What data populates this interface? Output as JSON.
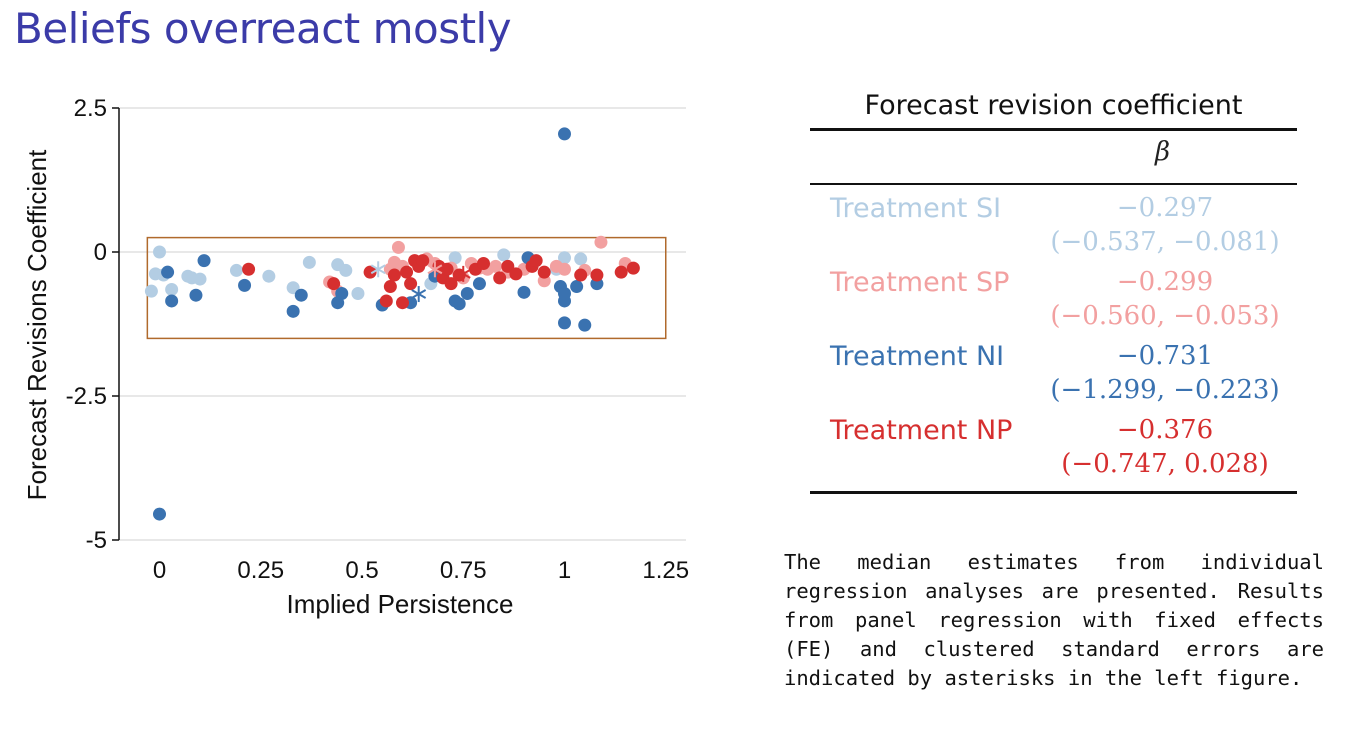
{
  "slide": {
    "title": "Beliefs overreact mostly"
  },
  "chart_data": {
    "type": "scatter",
    "title": "",
    "xlabel": "Implied Persistence",
    "ylabel": "Forecast Revisions Coefficient",
    "xlim": [
      -0.1,
      1.3
    ],
    "ylim": [
      -5,
      2.5
    ],
    "x_ticks": [
      "0",
      "0.25",
      "0.5",
      "0.75",
      "1",
      "1.25"
    ],
    "x_tick_values": [
      0,
      0.25,
      0.5,
      0.75,
      1,
      1.25
    ],
    "y_ticks": [
      "2.5",
      "0",
      "-2.5",
      "-5"
    ],
    "y_tick_values": [
      2.5,
      0,
      -2.5,
      -5
    ],
    "grid": "horizontal",
    "highlight_box": {
      "x0": -0.03,
      "x1": 1.25,
      "y0": -1.5,
      "y1": 0.25,
      "color": "#b06a2c"
    },
    "series": [
      {
        "color": "#b3cde3",
        "points": [
          [
            0,
            0
          ],
          [
            -0.01,
            -0.38
          ],
          [
            0.01,
            -0.4
          ],
          [
            -0.02,
            -0.68
          ],
          [
            0.03,
            -0.65
          ],
          [
            0.07,
            -0.42
          ],
          [
            0.08,
            -0.45
          ],
          [
            0.1,
            -0.47
          ],
          [
            0.19,
            -0.32
          ],
          [
            0.27,
            -0.42
          ],
          [
            0.33,
            -0.62
          ],
          [
            0.37,
            -0.18
          ],
          [
            0.44,
            -0.22
          ],
          [
            0.46,
            -0.32
          ],
          [
            0.49,
            -0.72
          ],
          [
            0.67,
            -0.55
          ],
          [
            0.7,
            -0.4
          ],
          [
            0.73,
            -0.1
          ],
          [
            0.85,
            -0.05
          ],
          [
            1,
            -0.1
          ],
          [
            1.04,
            -0.12
          ],
          [
            0.98,
            -0.3
          ]
        ]
      },
      {
        "color": "#f2a0a0",
        "points": [
          [
            0.42,
            -0.52
          ],
          [
            0.44,
            -0.68
          ],
          [
            0.57,
            -0.3
          ],
          [
            0.58,
            -0.18
          ],
          [
            0.59,
            0.08
          ],
          [
            0.6,
            -0.25
          ],
          [
            0.63,
            -0.15
          ],
          [
            0.66,
            -0.12
          ],
          [
            0.68,
            -0.2
          ],
          [
            0.7,
            -0.35
          ],
          [
            0.72,
            -0.28
          ],
          [
            0.75,
            -0.45
          ],
          [
            0.77,
            -0.2
          ],
          [
            0.79,
            -0.28
          ],
          [
            0.81,
            -0.3
          ],
          [
            0.83,
            -0.25
          ],
          [
            0.86,
            -0.35
          ],
          [
            0.9,
            -0.3
          ],
          [
            0.95,
            -0.5
          ],
          [
            0.98,
            -0.25
          ],
          [
            1,
            -0.3
          ],
          [
            1.05,
            -0.32
          ],
          [
            1.09,
            0.17
          ],
          [
            1.15,
            -0.2
          ]
        ]
      },
      {
        "color": "#3a72b0",
        "points": [
          [
            0,
            -4.55
          ],
          [
            0.02,
            -0.35
          ],
          [
            0.03,
            -0.85
          ],
          [
            0.09,
            -0.75
          ],
          [
            0.11,
            -0.15
          ],
          [
            0.21,
            -0.58
          ],
          [
            0.33,
            -1.03
          ],
          [
            0.35,
            -0.75
          ],
          [
            0.44,
            -0.88
          ],
          [
            0.45,
            -0.72
          ],
          [
            0.55,
            -0.92
          ],
          [
            0.62,
            -0.88
          ],
          [
            0.68,
            -0.42
          ],
          [
            0.73,
            -0.85
          ],
          [
            0.74,
            -0.9
          ],
          [
            0.76,
            -0.72
          ],
          [
            0.79,
            -0.55
          ],
          [
            0.9,
            -0.7
          ],
          [
            0.91,
            -0.1
          ],
          [
            0.99,
            -0.6
          ],
          [
            1,
            -0.72
          ],
          [
            1,
            -0.85
          ],
          [
            1,
            -1.23
          ],
          [
            1,
            2.05
          ],
          [
            1.03,
            -0.6
          ],
          [
            1.05,
            -1.27
          ],
          [
            1.08,
            -0.55
          ]
        ]
      },
      {
        "color": "#d62f2f",
        "points": [
          [
            0.22,
            -0.3
          ],
          [
            0.43,
            -0.55
          ],
          [
            0.52,
            -0.35
          ],
          [
            0.56,
            -0.85
          ],
          [
            0.57,
            -0.6
          ],
          [
            0.58,
            -0.4
          ],
          [
            0.6,
            -0.88
          ],
          [
            0.61,
            -0.35
          ],
          [
            0.62,
            -0.55
          ],
          [
            0.63,
            -0.15
          ],
          [
            0.64,
            -0.25
          ],
          [
            0.65,
            -0.15
          ],
          [
            0.69,
            -0.25
          ],
          [
            0.7,
            -0.45
          ],
          [
            0.71,
            -0.3
          ],
          [
            0.72,
            -0.55
          ],
          [
            0.74,
            -0.4
          ],
          [
            0.78,
            -0.3
          ],
          [
            0.8,
            -0.2
          ],
          [
            0.84,
            -0.45
          ],
          [
            0.86,
            -0.25
          ],
          [
            0.88,
            -0.38
          ],
          [
            0.92,
            -0.25
          ],
          [
            0.93,
            -0.15
          ],
          [
            0.95,
            -0.35
          ],
          [
            1.04,
            -0.4
          ],
          [
            1.08,
            -0.4
          ],
          [
            1.14,
            -0.35
          ],
          [
            1.17,
            -0.28
          ]
        ]
      }
    ],
    "fe_markers": [
      {
        "color": "#b3cde3",
        "x": 0.54,
        "y": -0.3
      },
      {
        "color": "#f2a0a0",
        "x": 0.68,
        "y": -0.3
      },
      {
        "color": "#3a72b0",
        "x": 0.64,
        "y": -0.73
      },
      {
        "color": "#d62f2f",
        "x": 0.75,
        "y": -0.38
      }
    ]
  },
  "table": {
    "title": "Forecast revision coefficient",
    "col_header": "β",
    "rows": [
      {
        "name": "Treatment SI",
        "estimate": "−0.297",
        "ci": "(−0.537, −0.081)",
        "color": "#b3cde3"
      },
      {
        "name": "Treatment SP",
        "estimate": "−0.299",
        "ci": "(−0.560, −0.053)",
        "color": "#f2a0a0"
      },
      {
        "name": "Treatment NI",
        "estimate": "−0.731",
        "ci": "(−1.299, −0.223)",
        "color": "#3a72b0"
      },
      {
        "name": "Treatment NP",
        "estimate": "−0.376",
        "ci": "(−0.747, 0.028)",
        "color": "#d62f2f"
      }
    ]
  },
  "note": {
    "text": "The median estimates from individual regression analyses are presented. Results from panel regression with fixed effects (FE) and clustered standard errors are indicated by asterisks in the left figure."
  }
}
